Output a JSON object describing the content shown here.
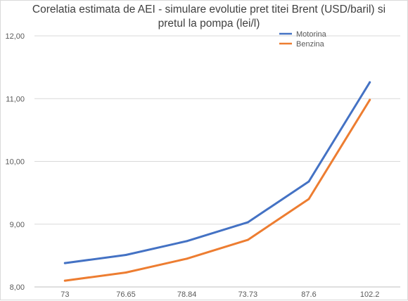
{
  "chart_data": {
    "type": "line",
    "title_lines": [
      "Corelatia estimata de AEI - simulare evolutie pret titei Brent (USD/baril) si",
      "pretul la pompa (lei/l)"
    ],
    "categories": [
      "73",
      "76.65",
      "78.84",
      "73.73",
      "87.6",
      "102.2"
    ],
    "y_ticks": [
      "8,00",
      "9,00",
      "10,00",
      "11,00",
      "12,00"
    ],
    "ylim": [
      8,
      12
    ],
    "grid": "horizontal",
    "legend_position": "top-right",
    "series": [
      {
        "name": "Motorina",
        "color": "#4472C4",
        "values": [
          8.38,
          8.51,
          8.73,
          9.03,
          9.68,
          11.26
        ]
      },
      {
        "name": "Benzina",
        "color": "#ED7D31",
        "values": [
          8.1,
          8.23,
          8.45,
          8.75,
          9.4,
          10.98
        ]
      }
    ]
  }
}
